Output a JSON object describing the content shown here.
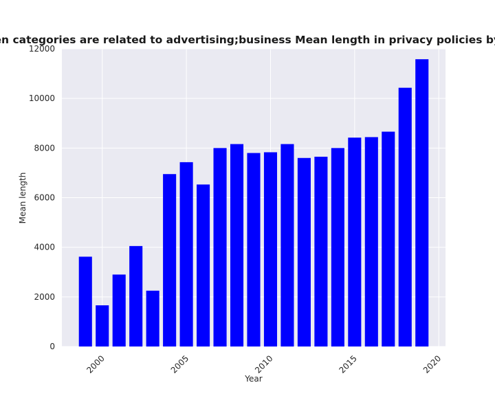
{
  "chart_data": {
    "type": "bar",
    "title": "when categories are related to advertising;business Mean length in privacy policies by Year",
    "xlabel": "Year",
    "ylabel": "Mean length",
    "categories": [
      1999,
      2000,
      2001,
      2002,
      2003,
      2004,
      2005,
      2006,
      2007,
      2008,
      2009,
      2010,
      2011,
      2012,
      2013,
      2014,
      2015,
      2016,
      2017,
      2018,
      2019
    ],
    "values": [
      3620,
      1660,
      2900,
      4050,
      2250,
      6950,
      7430,
      6530,
      8000,
      8160,
      7800,
      7830,
      8160,
      7600,
      7650,
      8000,
      8420,
      8440,
      8660,
      10430,
      11580
    ],
    "xticks": [
      "2000",
      "2005",
      "2010",
      "2015",
      "2020"
    ],
    "yticks": [
      "0",
      "2000",
      "4000",
      "6000",
      "8000",
      "10000",
      "12000"
    ],
    "xlim": [
      1997.6,
      2020.4
    ],
    "ylim": [
      0,
      12000
    ],
    "grid": true,
    "bar_color": "#0000ff",
    "plot_background": "#eaeaf2"
  }
}
